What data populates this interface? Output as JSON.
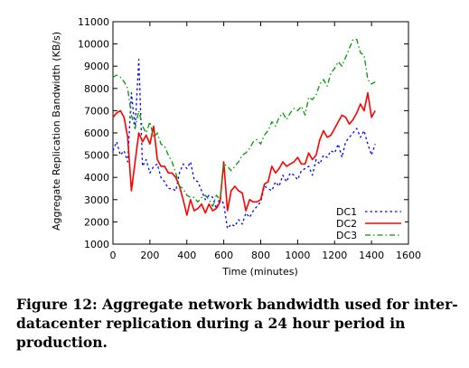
{
  "caption": "Figure 12: Aggregate network bandwidth used for inter-datacenter replication during a 24 hour period in production.",
  "chart_data": {
    "type": "line",
    "xlabel": "Time (minutes)",
    "ylabel": "Aggregate Replication Bandwidth (KB/s)",
    "xlim": [
      0,
      1600
    ],
    "ylim": [
      1000,
      11000
    ],
    "xticks": [
      0,
      200,
      400,
      600,
      800,
      1000,
      1200,
      1400,
      1600
    ],
    "yticks": [
      1000,
      2000,
      3000,
      4000,
      5000,
      6000,
      7000,
      8000,
      9000,
      10000,
      11000
    ],
    "grid": false,
    "legend_position": "bottom-right",
    "series": [
      {
        "name": "DC1",
        "color": "#0000ff",
        "dash": "dotted",
        "x": [
          0,
          20,
          40,
          60,
          80,
          100,
          120,
          140,
          160,
          180,
          200,
          220,
          240,
          260,
          280,
          300,
          320,
          340,
          360,
          380,
          400,
          420,
          440,
          460,
          480,
          500,
          520,
          540,
          560,
          580,
          600,
          620,
          640,
          660,
          680,
          700,
          720,
          740,
          760,
          780,
          800,
          820,
          840,
          860,
          880,
          900,
          920,
          940,
          960,
          980,
          1000,
          1020,
          1040,
          1060,
          1080,
          1100,
          1120,
          1140,
          1160,
          1180,
          1200,
          1220,
          1240,
          1260,
          1280,
          1300,
          1320,
          1340,
          1360,
          1380,
          1400,
          1420
        ],
        "values": [
          5200,
          5600,
          5000,
          5200,
          4700,
          7800,
          6200,
          9300,
          4500,
          4800,
          4200,
          4500,
          4600,
          4000,
          3800,
          3500,
          3500,
          3400,
          4200,
          4600,
          4400,
          4700,
          3900,
          3800,
          3400,
          3000,
          3200,
          3100,
          2600,
          3100,
          2800,
          1700,
          1900,
          1800,
          2100,
          1900,
          2400,
          2200,
          2500,
          2700,
          2900,
          3600,
          3500,
          3400,
          3800,
          3600,
          4100,
          3800,
          4200,
          4100,
          3900,
          4300,
          4400,
          4500,
          4100,
          4800,
          4600,
          5000,
          4900,
          5200,
          5100,
          5500,
          4900,
          5600,
          5800,
          6000,
          6200,
          5800,
          6100,
          5500,
          5000,
          5500
        ]
      },
      {
        "name": "DC2",
        "color": "#ff0000",
        "dash": "solid",
        "x": [
          0,
          20,
          40,
          60,
          80,
          100,
          120,
          140,
          160,
          180,
          200,
          220,
          240,
          260,
          280,
          300,
          320,
          340,
          360,
          380,
          400,
          420,
          440,
          460,
          480,
          500,
          520,
          540,
          560,
          580,
          600,
          620,
          640,
          660,
          680,
          700,
          720,
          740,
          760,
          780,
          800,
          820,
          840,
          860,
          880,
          900,
          920,
          940,
          960,
          980,
          1000,
          1020,
          1040,
          1060,
          1080,
          1100,
          1120,
          1140,
          1160,
          1180,
          1200,
          1220,
          1240,
          1260,
          1280,
          1300,
          1320,
          1340,
          1360,
          1380,
          1400,
          1420
        ],
        "values": [
          6700,
          6900,
          7000,
          6700,
          5800,
          3400,
          4700,
          6000,
          5600,
          5900,
          5500,
          6300,
          4800,
          4500,
          4500,
          4200,
          4200,
          4000,
          3600,
          3000,
          2300,
          3000,
          2500,
          2600,
          2800,
          2400,
          2800,
          2500,
          2600,
          2900,
          4700,
          2500,
          3400,
          3600,
          3400,
          3300,
          2500,
          3000,
          2900,
          2900,
          3000,
          3700,
          3800,
          4500,
          4200,
          4400,
          4700,
          4500,
          4600,
          4700,
          4900,
          4600,
          4600,
          5100,
          4800,
          5000,
          5700,
          6100,
          5800,
          5900,
          6200,
          6500,
          6800,
          6700,
          6400,
          6600,
          6900,
          7300,
          7000,
          7800,
          6700,
          7000
        ]
      },
      {
        "name": "DC3",
        "color": "#009900",
        "dash": "dashdot",
        "x": [
          0,
          20,
          40,
          60,
          80,
          100,
          120,
          140,
          160,
          180,
          200,
          220,
          240,
          260,
          280,
          300,
          320,
          340,
          360,
          380,
          400,
          420,
          440,
          460,
          480,
          500,
          520,
          540,
          560,
          580,
          600,
          620,
          640,
          660,
          680,
          700,
          720,
          740,
          760,
          780,
          800,
          820,
          840,
          860,
          880,
          900,
          920,
          940,
          960,
          980,
          1000,
          1020,
          1040,
          1060,
          1080,
          1100,
          1120,
          1140,
          1160,
          1180,
          1200,
          1220,
          1240,
          1260,
          1280,
          1300,
          1320,
          1340,
          1360,
          1380,
          1400,
          1420
        ],
        "values": [
          8500,
          8600,
          8500,
          8300,
          8000,
          6800,
          6200,
          7000,
          6300,
          6000,
          6500,
          5800,
          6000,
          5500,
          5400,
          5000,
          4700,
          4200,
          3600,
          3500,
          3200,
          3100,
          3100,
          2900,
          3100,
          3200,
          3000,
          2700,
          3200,
          3000,
          4600,
          4500,
          4300,
          4500,
          4700,
          5000,
          5100,
          5300,
          5600,
          5700,
          5500,
          5900,
          6100,
          6500,
          6300,
          6700,
          6900,
          6600,
          6900,
          7100,
          7000,
          7200,
          6800,
          7600,
          7500,
          7700,
          8200,
          8400,
          8100,
          8700,
          8900,
          9200,
          9000,
          9400,
          9800,
          10200,
          10200,
          9600,
          9500,
          8400,
          8200,
          8300
        ]
      }
    ]
  }
}
